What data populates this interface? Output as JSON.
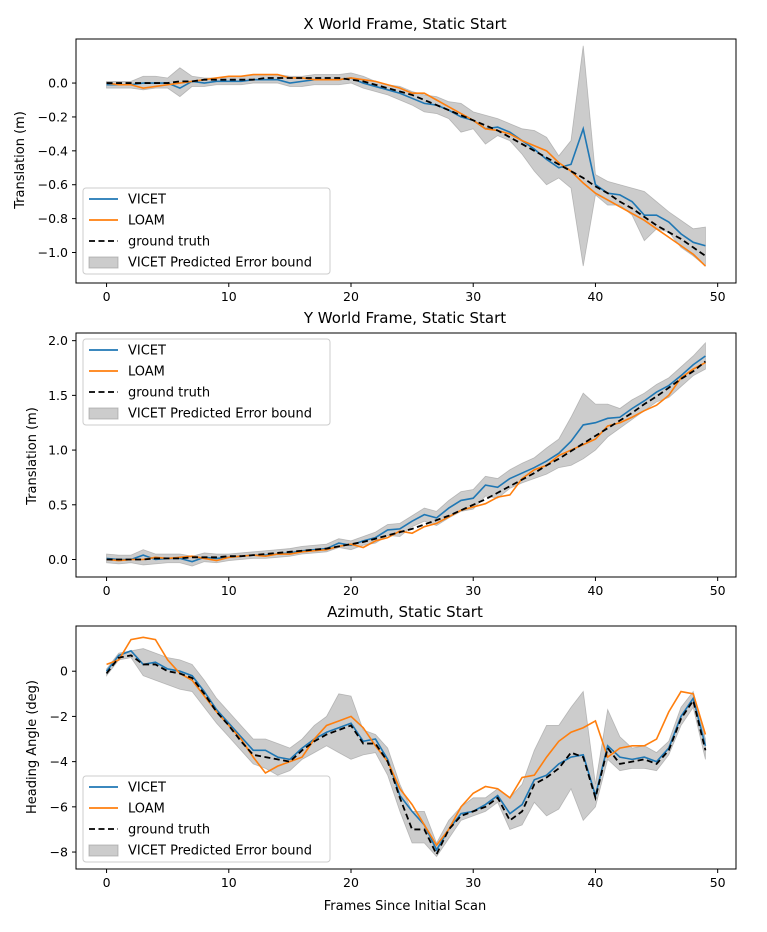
{
  "chart_data": [
    {
      "type": "line",
      "title": "X World Frame, Static Start",
      "xlabel": "",
      "ylabel": "Translation (m)",
      "xlim": [
        -2.5,
        51.5
      ],
      "ylim": [
        -1.18,
        0.26
      ],
      "xticks": [
        0,
        10,
        20,
        30,
        40,
        50
      ],
      "yticks": [
        0.0,
        -0.2,
        -0.4,
        -0.6,
        -0.8,
        -1.0
      ],
      "ytick_labels": [
        "0.0",
        "−0.2",
        "−0.4",
        "−0.6",
        "−0.8",
        "−1.0"
      ],
      "legend": {
        "position": "bottom-left",
        "entries": [
          "VICET",
          "LOAM",
          "ground truth",
          "VICET Predicted Error bound"
        ]
      },
      "x": [
        0,
        1,
        2,
        3,
        4,
        5,
        6,
        7,
        8,
        9,
        10,
        11,
        12,
        13,
        14,
        15,
        16,
        17,
        18,
        19,
        20,
        21,
        22,
        23,
        24,
        25,
        26,
        27,
        28,
        29,
        30,
        31,
        32,
        33,
        34,
        35,
        36,
        37,
        38,
        39,
        40,
        41,
        42,
        43,
        44,
        45,
        46,
        47,
        48,
        49
      ],
      "series": [
        {
          "name": "VICET",
          "color": "#1f77b4",
          "style": "solid",
          "values": [
            -0.01,
            -0.01,
            -0.01,
            0.0,
            0.0,
            0.0,
            -0.03,
            0.01,
            0.0,
            0.01,
            0.01,
            0.01,
            0.02,
            0.02,
            0.02,
            0.0,
            0.01,
            0.02,
            0.02,
            0.02,
            0.03,
            0.0,
            -0.02,
            -0.04,
            -0.06,
            -0.09,
            -0.12,
            -0.13,
            -0.16,
            -0.2,
            -0.22,
            -0.27,
            -0.26,
            -0.29,
            -0.34,
            -0.39,
            -0.45,
            -0.5,
            -0.48,
            -0.27,
            -0.6,
            -0.65,
            -0.66,
            -0.7,
            -0.78,
            -0.78,
            -0.82,
            -0.89,
            -0.94,
            -0.96
          ]
        },
        {
          "name": "LOAM",
          "color": "#ff7f0e",
          "style": "solid",
          "values": [
            0.0,
            -0.01,
            -0.01,
            -0.03,
            -0.02,
            -0.01,
            0.0,
            0.01,
            0.02,
            0.03,
            0.04,
            0.04,
            0.05,
            0.05,
            0.05,
            0.03,
            0.03,
            0.02,
            0.02,
            0.02,
            0.03,
            0.02,
            0.01,
            -0.01,
            -0.03,
            -0.06,
            -0.06,
            -0.1,
            -0.14,
            -0.18,
            -0.22,
            -0.27,
            -0.28,
            -0.3,
            -0.34,
            -0.37,
            -0.4,
            -0.47,
            -0.52,
            -0.59,
            -0.65,
            -0.69,
            -0.73,
            -0.77,
            -0.81,
            -0.86,
            -0.91,
            -0.96,
            -1.01,
            -1.08
          ]
        },
        {
          "name": "ground truth",
          "color": "#000000",
          "style": "dashed",
          "values": [
            0.0,
            0.0,
            0.0,
            0.0,
            0.0,
            0.0,
            0.01,
            0.01,
            0.02,
            0.02,
            0.02,
            0.02,
            0.02,
            0.03,
            0.03,
            0.03,
            0.03,
            0.03,
            0.03,
            0.03,
            0.02,
            0.01,
            -0.01,
            -0.03,
            -0.05,
            -0.07,
            -0.1,
            -0.13,
            -0.16,
            -0.19,
            -0.22,
            -0.25,
            -0.28,
            -0.32,
            -0.36,
            -0.4,
            -0.44,
            -0.48,
            -0.52,
            -0.56,
            -0.61,
            -0.65,
            -0.7,
            -0.74,
            -0.79,
            -0.84,
            -0.88,
            -0.92,
            -0.97,
            -1.02
          ]
        },
        {
          "name": "VICET Predicted Error bound",
          "type": "band",
          "color": "#999999",
          "lower": [
            -0.03,
            -0.03,
            -0.03,
            -0.04,
            -0.03,
            -0.03,
            -0.08,
            -0.02,
            -0.02,
            -0.01,
            -0.01,
            -0.01,
            0.0,
            0.0,
            0.0,
            -0.02,
            -0.02,
            -0.01,
            -0.01,
            -0.01,
            0.0,
            -0.03,
            -0.05,
            -0.07,
            -0.1,
            -0.13,
            -0.17,
            -0.18,
            -0.21,
            -0.29,
            -0.27,
            -0.36,
            -0.31,
            -0.34,
            -0.42,
            -0.52,
            -0.6,
            -0.56,
            -0.62,
            -1.08,
            -0.66,
            -0.72,
            -0.72,
            -0.78,
            -0.93,
            -0.86,
            -0.88,
            -0.97,
            -1.02,
            -1.08
          ],
          "upper": [
            0.01,
            0.01,
            0.01,
            0.04,
            0.04,
            0.03,
            0.09,
            0.04,
            0.03,
            0.03,
            0.04,
            0.04,
            0.05,
            0.05,
            0.05,
            0.04,
            0.04,
            0.05,
            0.05,
            0.05,
            0.06,
            0.04,
            0.01,
            -0.01,
            -0.02,
            -0.05,
            -0.07,
            -0.08,
            -0.11,
            -0.12,
            -0.17,
            -0.19,
            -0.21,
            -0.24,
            -0.27,
            -0.28,
            -0.32,
            -0.43,
            -0.34,
            0.22,
            -0.54,
            -0.58,
            -0.6,
            -0.62,
            -0.64,
            -0.7,
            -0.76,
            -0.81,
            -0.86,
            -0.85
          ]
        }
      ]
    },
    {
      "type": "line",
      "title": "Y World Frame, Static Start",
      "xlabel": "",
      "ylabel": "Translation (m)",
      "xlim": [
        -2.5,
        51.5
      ],
      "ylim": [
        -0.16,
        2.07
      ],
      "xticks": [
        0,
        10,
        20,
        30,
        40,
        50
      ],
      "yticks": [
        0.0,
        0.5,
        1.0,
        1.5,
        2.0
      ],
      "ytick_labels": [
        "0.0",
        "0.5",
        "1.0",
        "1.5",
        "2.0"
      ],
      "legend": {
        "position": "top-left",
        "entries": [
          "VICET",
          "LOAM",
          "ground truth",
          "VICET Predicted Error bound"
        ]
      },
      "x": [
        0,
        1,
        2,
        3,
        4,
        5,
        6,
        7,
        8,
        9,
        10,
        11,
        12,
        13,
        14,
        15,
        16,
        17,
        18,
        19,
        20,
        21,
        22,
        23,
        24,
        25,
        26,
        27,
        28,
        29,
        30,
        31,
        32,
        33,
        34,
        35,
        36,
        37,
        38,
        39,
        40,
        41,
        42,
        43,
        44,
        45,
        46,
        47,
        48,
        49
      ],
      "series": [
        {
          "name": "VICET",
          "color": "#1f77b4",
          "style": "solid",
          "values": [
            0.01,
            0.0,
            0.0,
            0.04,
            0.0,
            0.01,
            0.01,
            -0.02,
            0.02,
            0.01,
            0.02,
            0.03,
            0.04,
            0.04,
            0.05,
            0.06,
            0.08,
            0.09,
            0.1,
            0.15,
            0.13,
            0.17,
            0.2,
            0.27,
            0.28,
            0.35,
            0.41,
            0.38,
            0.47,
            0.54,
            0.56,
            0.68,
            0.66,
            0.74,
            0.79,
            0.84,
            0.9,
            0.97,
            1.08,
            1.23,
            1.25,
            1.29,
            1.3,
            1.38,
            1.45,
            1.53,
            1.59,
            1.68,
            1.78,
            1.86
          ]
        },
        {
          "name": "LOAM",
          "color": "#ff7f0e",
          "style": "solid",
          "values": [
            0.0,
            -0.01,
            0.0,
            0.0,
            0.02,
            0.01,
            0.02,
            0.03,
            0.01,
            -0.01,
            0.02,
            0.03,
            0.04,
            0.03,
            0.05,
            0.05,
            0.07,
            0.08,
            0.09,
            0.12,
            0.14,
            0.11,
            0.17,
            0.2,
            0.26,
            0.24,
            0.3,
            0.33,
            0.39,
            0.45,
            0.48,
            0.51,
            0.57,
            0.59,
            0.74,
            0.82,
            0.86,
            0.95,
            1.0,
            1.05,
            1.1,
            1.22,
            1.25,
            1.3,
            1.36,
            1.41,
            1.5,
            1.66,
            1.74,
            1.8
          ]
        },
        {
          "name": "ground truth",
          "color": "#000000",
          "style": "dashed",
          "values": [
            0.0,
            0.0,
            0.0,
            0.0,
            0.01,
            0.01,
            0.01,
            0.02,
            0.02,
            0.02,
            0.03,
            0.03,
            0.04,
            0.05,
            0.06,
            0.07,
            0.08,
            0.09,
            0.1,
            0.12,
            0.14,
            0.16,
            0.19,
            0.22,
            0.25,
            0.28,
            0.32,
            0.36,
            0.4,
            0.45,
            0.5,
            0.55,
            0.61,
            0.67,
            0.73,
            0.79,
            0.86,
            0.92,
            0.99,
            1.06,
            1.13,
            1.2,
            1.27,
            1.34,
            1.42,
            1.49,
            1.57,
            1.65,
            1.72,
            1.81
          ]
        },
        {
          "name": "VICET Predicted Error bound",
          "type": "band",
          "color": "#999999",
          "lower": [
            -0.03,
            -0.04,
            -0.03,
            -0.05,
            -0.04,
            -0.03,
            -0.03,
            -0.06,
            -0.02,
            -0.03,
            -0.01,
            0.0,
            0.01,
            0.01,
            0.02,
            0.03,
            0.05,
            0.06,
            0.07,
            0.11,
            0.09,
            0.13,
            0.15,
            0.22,
            0.21,
            0.3,
            0.35,
            0.31,
            0.38,
            0.44,
            0.46,
            0.58,
            0.56,
            0.65,
            0.7,
            0.74,
            0.78,
            0.84,
            0.86,
            0.92,
            1.0,
            1.12,
            1.2,
            1.28,
            1.36,
            1.44,
            1.48,
            1.58,
            1.68,
            1.74
          ],
          "upper": [
            0.05,
            0.04,
            0.04,
            0.09,
            0.05,
            0.05,
            0.05,
            0.03,
            0.06,
            0.05,
            0.05,
            0.06,
            0.07,
            0.08,
            0.09,
            0.1,
            0.12,
            0.13,
            0.14,
            0.19,
            0.17,
            0.21,
            0.25,
            0.32,
            0.33,
            0.4,
            0.47,
            0.44,
            0.54,
            0.62,
            0.64,
            0.76,
            0.74,
            0.82,
            0.88,
            0.93,
            1.02,
            1.1,
            1.3,
            1.52,
            1.42,
            1.42,
            1.38,
            1.46,
            1.52,
            1.6,
            1.66,
            1.76,
            1.86,
            1.98
          ]
        }
      ]
    },
    {
      "type": "line",
      "title": "Azimuth, Static Start",
      "xlabel": "Frames Since Initial Scan",
      "ylabel": "Heading Angle (deg)",
      "xlim": [
        -2.5,
        51.5
      ],
      "ylim": [
        -8.75,
        2.0
      ],
      "xticks": [
        0,
        10,
        20,
        30,
        40,
        50
      ],
      "yticks": [
        0,
        -2,
        -4,
        -6,
        -8
      ],
      "ytick_labels": [
        "0",
        "−2",
        "−4",
        "−6",
        "−8"
      ],
      "legend": {
        "position": "bottom-left",
        "entries": [
          "VICET",
          "LOAM",
          "ground truth",
          "VICET Predicted Error bound"
        ]
      },
      "x": [
        0,
        1,
        2,
        3,
        4,
        5,
        6,
        7,
        8,
        9,
        10,
        11,
        12,
        13,
        14,
        15,
        16,
        17,
        18,
        19,
        20,
        21,
        22,
        23,
        24,
        25,
        26,
        27,
        28,
        29,
        30,
        31,
        32,
        33,
        34,
        35,
        36,
        37,
        38,
        39,
        40,
        41,
        42,
        43,
        44,
        45,
        46,
        47,
        48,
        49
      ],
      "series": [
        {
          "name": "VICET",
          "color": "#1f77b4",
          "style": "solid",
          "values": [
            0.0,
            0.7,
            0.9,
            0.3,
            0.4,
            0.1,
            0.0,
            -0.2,
            -0.9,
            -1.7,
            -2.3,
            -2.9,
            -3.5,
            -3.5,
            -3.8,
            -3.9,
            -3.4,
            -3.0,
            -2.7,
            -2.5,
            -2.3,
            -3.1,
            -3.0,
            -3.9,
            -5.5,
            -6.2,
            -6.8,
            -7.9,
            -7.0,
            -6.3,
            -6.2,
            -5.9,
            -5.5,
            -6.3,
            -5.9,
            -4.8,
            -4.6,
            -4.1,
            -3.8,
            -3.7,
            -5.5,
            -3.3,
            -3.8,
            -3.9,
            -3.8,
            -4.0,
            -3.4,
            -2.0,
            -1.2,
            -3.3
          ]
        },
        {
          "name": "LOAM",
          "color": "#ff7f0e",
          "style": "solid",
          "values": [
            0.3,
            0.5,
            1.4,
            1.5,
            1.4,
            0.5,
            -0.1,
            -0.4,
            -1.1,
            -1.8,
            -2.4,
            -3.0,
            -3.8,
            -4.5,
            -4.2,
            -4.0,
            -3.8,
            -3.0,
            -2.4,
            -2.2,
            -2.0,
            -2.5,
            -3.3,
            -4.0,
            -5.2,
            -5.9,
            -6.8,
            -7.7,
            -7.0,
            -6.0,
            -5.4,
            -5.1,
            -5.2,
            -5.6,
            -4.7,
            -4.6,
            -3.8,
            -3.1,
            -2.7,
            -2.5,
            -2.2,
            -3.8,
            -3.4,
            -3.3,
            -3.3,
            -3.0,
            -1.8,
            -0.9,
            -1.0,
            -2.8
          ]
        },
        {
          "name": "ground truth",
          "color": "#000000",
          "style": "dashed",
          "values": [
            -0.1,
            0.6,
            0.7,
            0.3,
            0.3,
            0.0,
            -0.1,
            -0.3,
            -1.0,
            -1.8,
            -2.4,
            -3.1,
            -3.7,
            -3.8,
            -3.9,
            -4.0,
            -3.5,
            -3.1,
            -2.8,
            -2.6,
            -2.4,
            -3.2,
            -3.2,
            -4.0,
            -5.6,
            -7.0,
            -7.0,
            -8.1,
            -7.0,
            -6.4,
            -6.2,
            -6.0,
            -5.6,
            -6.6,
            -6.2,
            -5.0,
            -4.7,
            -4.3,
            -3.6,
            -3.8,
            -5.6,
            -3.4,
            -4.1,
            -4.0,
            -3.9,
            -4.1,
            -3.5,
            -2.1,
            -1.3,
            -3.5
          ]
        },
        {
          "name": "VICET Predicted Error bound",
          "type": "band",
          "color": "#999999",
          "lower": [
            -0.2,
            0.5,
            0.6,
            -0.2,
            -0.4,
            -0.6,
            -0.8,
            -0.9,
            -1.6,
            -2.3,
            -2.9,
            -3.5,
            -4.1,
            -4.3,
            -4.6,
            -4.4,
            -3.9,
            -3.6,
            -3.3,
            -3.6,
            -3.9,
            -3.7,
            -3.6,
            -4.6,
            -6.2,
            -7.6,
            -7.6,
            -8.2,
            -7.4,
            -6.6,
            -6.4,
            -6.2,
            -5.8,
            -7.0,
            -6.8,
            -5.8,
            -6.4,
            -6.1,
            -5.2,
            -6.6,
            -6.0,
            -3.9,
            -4.4,
            -4.3,
            -4.3,
            -4.4,
            -3.7,
            -2.4,
            -1.6,
            -3.9
          ],
          "upper": [
            0.1,
            0.8,
            0.9,
            1.0,
            0.8,
            0.6,
            0.5,
            0.3,
            -0.4,
            -1.2,
            -1.8,
            -2.4,
            -3.0,
            -3.0,
            -3.2,
            -3.4,
            -3.0,
            -2.4,
            -2.0,
            -1.0,
            -1.1,
            -2.6,
            -2.8,
            -3.4,
            -5.0,
            -6.2,
            -6.2,
            -7.6,
            -6.6,
            -6.0,
            -5.6,
            -5.6,
            -5.2,
            -5.6,
            -5.0,
            -3.5,
            -2.4,
            -2.4,
            -1.6,
            -0.9,
            -5.0,
            -1.7,
            -2.9,
            -3.4,
            -3.3,
            -3.6,
            -3.1,
            -1.6,
            -0.9,
            -3.0
          ]
        }
      ]
    }
  ]
}
